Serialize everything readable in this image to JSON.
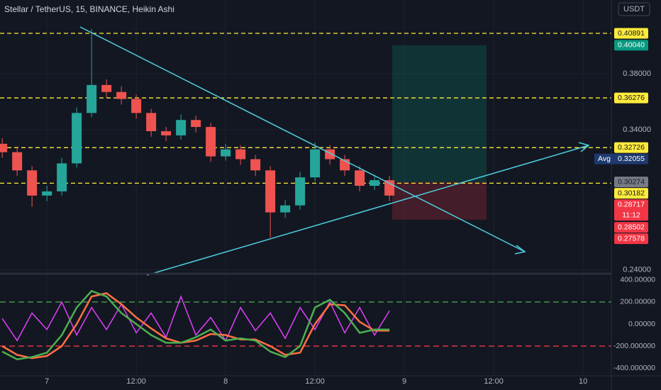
{
  "chart_data": {
    "type": "candlestick",
    "title": "Stellar / TetherUS, 15, BINANCE, Heikin Ashi",
    "currency": "USDT",
    "up_color": "#26a69a",
    "down_color": "#ef5350",
    "xlim": [
      -6.3,
      75.8
    ],
    "xticks": [
      {
        "value": 0,
        "label": "7"
      },
      {
        "value": 12,
        "label": "12:00"
      },
      {
        "value": 24,
        "label": "8"
      },
      {
        "value": 36,
        "label": "12:00"
      },
      {
        "value": 48,
        "label": "9"
      },
      {
        "value": 60,
        "label": "12:00"
      },
      {
        "value": 72,
        "label": "10"
      }
    ],
    "ylim": [
      0.2377,
      0.4327
    ],
    "yticks": [
      {
        "value": 0.38,
        "label": "0.38000"
      },
      {
        "value": 0.34,
        "label": "0.34000"
      },
      {
        "value": 0.24,
        "label": "0.24000"
      }
    ],
    "candles": [
      {
        "x": -6,
        "open": 0.33,
        "high": 0.334,
        "low": 0.32,
        "close": 0.324
      },
      {
        "x": -4,
        "open": 0.324,
        "high": 0.328,
        "low": 0.307,
        "close": 0.311
      },
      {
        "x": -2,
        "open": 0.311,
        "high": 0.314,
        "low": 0.285,
        "close": 0.293
      },
      {
        "x": 0,
        "open": 0.293,
        "high": 0.3,
        "low": 0.289,
        "close": 0.296
      },
      {
        "x": 2,
        "open": 0.296,
        "high": 0.32,
        "low": 0.293,
        "close": 0.316
      },
      {
        "x": 4,
        "open": 0.316,
        "high": 0.356,
        "low": 0.313,
        "close": 0.352
      },
      {
        "x": 6,
        "open": 0.352,
        "high": 0.412,
        "low": 0.349,
        "close": 0.372
      },
      {
        "x": 8,
        "open": 0.372,
        "high": 0.376,
        "low": 0.363,
        "close": 0.367
      },
      {
        "x": 10,
        "open": 0.367,
        "high": 0.371,
        "low": 0.358,
        "close": 0.362
      },
      {
        "x": 12,
        "open": 0.362,
        "high": 0.365,
        "low": 0.348,
        "close": 0.352
      },
      {
        "x": 14,
        "open": 0.352,
        "high": 0.355,
        "low": 0.335,
        "close": 0.339
      },
      {
        "x": 16,
        "open": 0.339,
        "high": 0.342,
        "low": 0.332,
        "close": 0.336
      },
      {
        "x": 18,
        "open": 0.336,
        "high": 0.351,
        "low": 0.333,
        "close": 0.347
      },
      {
        "x": 20,
        "open": 0.347,
        "high": 0.35,
        "low": 0.338,
        "close": 0.342
      },
      {
        "x": 22,
        "open": 0.342,
        "high": 0.345,
        "low": 0.317,
        "close": 0.321
      },
      {
        "x": 24,
        "open": 0.321,
        "high": 0.33,
        "low": 0.318,
        "close": 0.326
      },
      {
        "x": 26,
        "open": 0.326,
        "high": 0.329,
        "low": 0.315,
        "close": 0.319
      },
      {
        "x": 28,
        "open": 0.319,
        "high": 0.322,
        "low": 0.307,
        "close": 0.311
      },
      {
        "x": 30,
        "open": 0.311,
        "high": 0.314,
        "low": 0.263,
        "close": 0.281
      },
      {
        "x": 32,
        "open": 0.281,
        "high": 0.29,
        "low": 0.277,
        "close": 0.286
      },
      {
        "x": 34,
        "open": 0.286,
        "high": 0.31,
        "low": 0.283,
        "close": 0.306
      },
      {
        "x": 36,
        "open": 0.306,
        "high": 0.331,
        "low": 0.303,
        "close": 0.326
      },
      {
        "x": 38,
        "open": 0.326,
        "high": 0.329,
        "low": 0.315,
        "close": 0.319
      },
      {
        "x": 40,
        "open": 0.319,
        "high": 0.322,
        "low": 0.307,
        "close": 0.311
      },
      {
        "x": 42,
        "open": 0.311,
        "high": 0.314,
        "low": 0.296,
        "close": 0.3
      },
      {
        "x": 44,
        "open": 0.3,
        "high": 0.308,
        "low": 0.297,
        "close": 0.304
      },
      {
        "x": 46,
        "open": 0.304,
        "high": 0.307,
        "low": 0.289,
        "close": 0.293
      }
    ],
    "levels": [
      {
        "value": 0.40891,
        "label": "0.40891",
        "color": "#ffeb3b",
        "text_color": "#131722",
        "dashed": true
      },
      {
        "value": 0.4004,
        "label": "0.40040",
        "color": "#089981",
        "text_color": "#ffffff"
      },
      {
        "value": 0.36276,
        "label": "0.36276",
        "color": "#ffeb3b",
        "text_color": "#131722",
        "dashed": true
      },
      {
        "value": 0.32726,
        "label": "0.32726",
        "color": "#ffeb3b",
        "text_color": "#131722",
        "dashed": true
      },
      {
        "value": 0.32055,
        "label": "0.32055",
        "prefix": "Avg",
        "color": "#1e3a6e",
        "text_color": "#ffffff"
      },
      {
        "value": 0.30274,
        "label": "0.30274",
        "color": "#787b86",
        "text_color": "#131722"
      },
      {
        "value": 0.30182,
        "label": "0.30182",
        "color": "#ffeb3b",
        "text_color": "#131722",
        "dashed": true
      },
      {
        "value": 0.28717,
        "label": "0.28717",
        "countdown": "11:12",
        "color": "#f23645",
        "text_color": "#ffffff"
      },
      {
        "value": 0.28502,
        "label": "0.28502",
        "color": "#f23645",
        "text_color": "#ffffff"
      },
      {
        "value": 0.27578,
        "label": "0.27578",
        "color": "#f23645",
        "text_color": "#ffffff"
      }
    ],
    "oscillator": {
      "ylim": [
        -470,
        444
      ],
      "yticks": [
        {
          "value": 400,
          "label": "400.00000"
        },
        {
          "value": 200,
          "label": "200.00000"
        },
        {
          "value": 0,
          "label": "0.00000"
        },
        {
          "value": -200,
          "label": "-200.000000"
        },
        {
          "value": -400,
          "label": "-400.000000"
        }
      ],
      "bands": [
        {
          "value": 200,
          "color": "#4caf50"
        },
        {
          "value": -200,
          "color": "#f23645"
        }
      ],
      "x": [
        -6,
        -4,
        -2,
        0,
        2,
        4,
        6,
        8,
        10,
        12,
        14,
        16,
        18,
        20,
        22,
        24,
        26,
        28,
        30,
        32,
        34,
        36,
        38,
        40,
        42,
        44,
        46
      ],
      "series": [
        {
          "color": "#e040fb",
          "values": [
            50,
            -150,
            100,
            -50,
            200,
            -100,
            150,
            -50,
            180,
            -80,
            100,
            -120,
            250,
            -100,
            60,
            -150,
            150,
            -60,
            100,
            -130,
            150,
            -50,
            200,
            -80,
            150,
            -100,
            120
          ]
        },
        {
          "color": "#ff7043",
          "values": [
            -200,
            -280,
            -310,
            -290,
            -200,
            0,
            250,
            280,
            180,
            60,
            -40,
            -130,
            -170,
            -150,
            -90,
            -100,
            -140,
            -140,
            -200,
            -280,
            -260,
            0,
            180,
            170,
            20,
            -60,
            -60
          ]
        },
        {
          "color": "#4caf50",
          "values": [
            -250,
            -320,
            -300,
            -260,
            -100,
            150,
            300,
            250,
            100,
            0,
            -100,
            -170,
            -170,
            -120,
            -50,
            -150,
            -130,
            -150,
            -250,
            -300,
            -200,
            150,
            220,
            100,
            -80,
            -50,
            -50
          ]
        }
      ]
    }
  }
}
